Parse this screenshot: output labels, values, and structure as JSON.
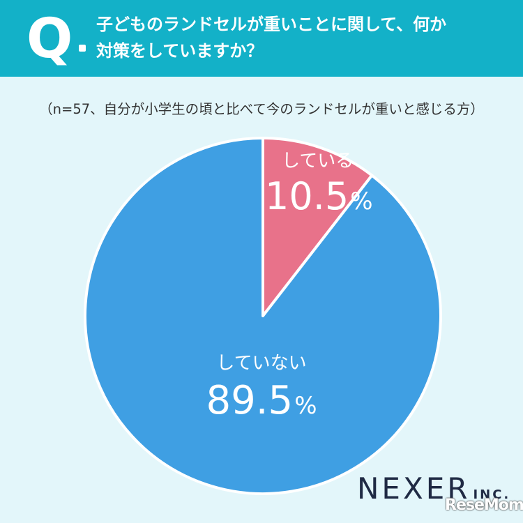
{
  "header": {
    "q_mark": "Q",
    "question_line1": "子どものランドセルが重いことに関して、何か",
    "question_line2": "対策をしていますか？"
  },
  "note": "（n=57、自分が小学生の頃と比べて今のランドセルが重いと感じる方）",
  "chart_data": {
    "type": "pie",
    "title": "",
    "slices": [
      {
        "label": "している",
        "value": 10.5,
        "value_text": "10.5",
        "unit": "%",
        "color": "#e8728a"
      },
      {
        "label": "していない",
        "value": 89.5,
        "value_text": "89.5",
        "unit": "%",
        "color": "#3f9fe3"
      }
    ]
  },
  "colors": {
    "header_bg": "#13b1c8",
    "page_bg": "#e3f6fa",
    "slice_border": "#ffffff"
  },
  "branding": {
    "logo_main": "NEXER",
    "logo_suffix": "INC.",
    "watermark": "ReseMom"
  }
}
